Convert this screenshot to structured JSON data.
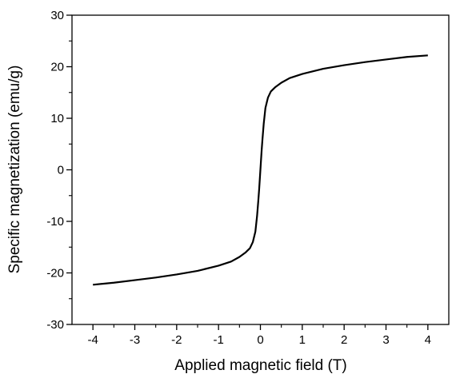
{
  "chart_data": {
    "type": "line",
    "title": "",
    "xlabel": "Applied magnetic field (T)",
    "ylabel": "Specific magnetization (emu/g)",
    "xlim": [
      -4.5,
      4.5
    ],
    "ylim": [
      -30,
      30
    ],
    "xticks": [
      -4,
      -3,
      -2,
      -1,
      0,
      1,
      2,
      3,
      4
    ],
    "yticks": [
      -30,
      -20,
      -10,
      0,
      10,
      20,
      30
    ],
    "x_tick_labels": [
      "-4",
      "-3",
      "-2",
      "-1",
      "0",
      "1",
      "2",
      "3",
      "4"
    ],
    "y_tick_labels": [
      "-30",
      "-20",
      "-10",
      "0",
      "10",
      "20",
      "30"
    ],
    "grid": false,
    "legend": "none",
    "line_color": "#000000",
    "series": [
      {
        "name": "",
        "x": [
          -4.0,
          -3.5,
          -3.0,
          -2.5,
          -2.0,
          -1.5,
          -1.0,
          -0.7,
          -0.5,
          -0.35,
          -0.25,
          -0.18,
          -0.12,
          -0.08,
          -0.05,
          -0.03,
          -0.015,
          0.0,
          0.015,
          0.03,
          0.05,
          0.08,
          0.12,
          0.18,
          0.25,
          0.35,
          0.5,
          0.7,
          1.0,
          1.5,
          2.0,
          2.5,
          3.0,
          3.5,
          4.0
        ],
        "y": [
          -22.3,
          -21.9,
          -21.4,
          -20.9,
          -20.3,
          -19.6,
          -18.6,
          -17.8,
          -16.9,
          -16.0,
          -15.2,
          -14.0,
          -12.0,
          -9.0,
          -6.0,
          -3.8,
          -1.9,
          0.0,
          1.9,
          3.8,
          6.0,
          9.0,
          12.0,
          14.0,
          15.2,
          16.0,
          16.9,
          17.8,
          18.6,
          19.6,
          20.3,
          20.9,
          21.4,
          21.9,
          22.2
        ]
      }
    ]
  }
}
